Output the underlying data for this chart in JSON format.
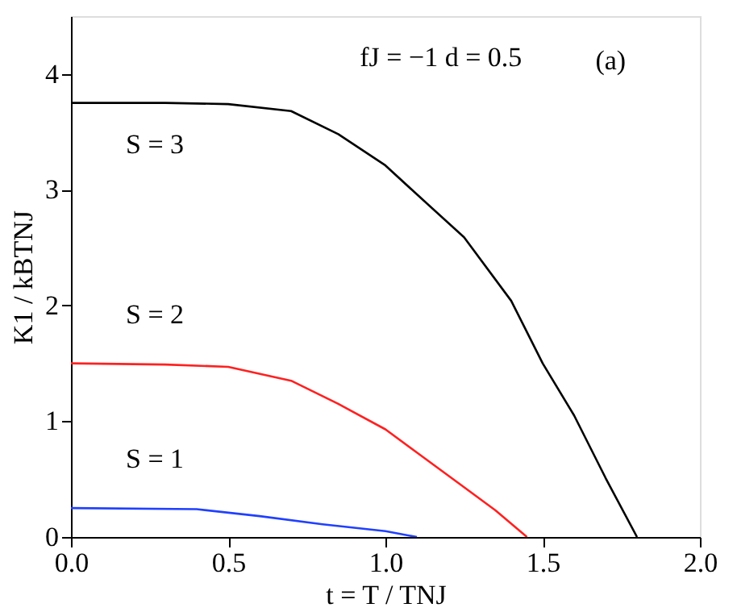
{
  "chart_data": {
    "type": "line",
    "xlabel": "t = T / TNJ",
    "ylabel": "K1 / kBTNJ",
    "annotations": [
      "fJ = −1    d = 0.5",
      "(a)"
    ],
    "xlim": [
      0,
      2
    ],
    "ylim": [
      0,
      4.5
    ],
    "xticks": [
      {
        "value": 0,
        "label": "0.0"
      },
      {
        "value": 0.5,
        "label": "0.5"
      },
      {
        "value": 1,
        "label": "1.0"
      },
      {
        "value": 1.5,
        "label": "1.5"
      },
      {
        "value": 2,
        "label": "2.0"
      }
    ],
    "yticks": [
      0,
      1,
      2,
      3,
      4
    ],
    "grid": false,
    "marker": "none",
    "line_style": "solid",
    "series": [
      {
        "name": "S = 3",
        "color": "#000000",
        "x": [
          0,
          0.3,
          0.5,
          0.7,
          0.85,
          1.0,
          1.1,
          1.25,
          1.4,
          1.5,
          1.6,
          1.7,
          1.8
        ],
        "values": [
          3.75,
          3.75,
          3.74,
          3.68,
          3.48,
          3.21,
          2.96,
          2.59,
          2.04,
          1.5,
          1.05,
          0.51,
          0
        ]
      },
      {
        "name": "S = 2",
        "color": "#ff2020",
        "x": [
          0,
          0.3,
          0.5,
          0.7,
          0.85,
          1.0,
          1.1,
          1.25,
          1.35,
          1.45
        ],
        "values": [
          1.5,
          1.49,
          1.47,
          1.35,
          1.15,
          0.93,
          0.73,
          0.43,
          0.23,
          0
        ]
      },
      {
        "name": "S = 1",
        "color": "#2040ff",
        "x": [
          0,
          0.4,
          0.6,
          0.8,
          1.0,
          1.1
        ],
        "values": [
          0.25,
          0.24,
          0.18,
          0.11,
          0.05,
          0
        ]
      }
    ]
  }
}
